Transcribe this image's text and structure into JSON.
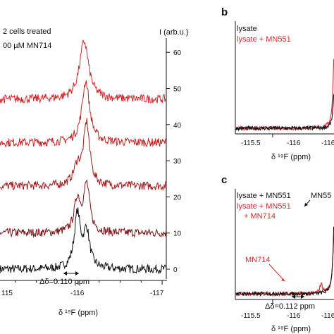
{
  "colors": {
    "black": "#111111",
    "red": "#d7262b",
    "series_shades": [
      "#111111",
      "#7a1414",
      "#a31c1c",
      "#c42424",
      "#d7262b"
    ]
  },
  "panel_a": {
    "condition_line1": "2 cells treated",
    "condition_line2": "00 µM MN714",
    "intensity_label": "I (arb.u.)",
    "x_axis_label": "δ ¹⁹F (ppm)",
    "delta_annotation": "Δδ=0.110 ppm",
    "x_tick_labels": [
      "115",
      "-116",
      "-117"
    ],
    "y_tick_labels": [
      "0",
      "10",
      "20",
      "30",
      "40",
      "50",
      "60"
    ]
  },
  "panel_b": {
    "letter": "b",
    "legend": [
      "lysate",
      "lysate + MN551"
    ],
    "x_axis_label": "δ ¹⁹F (ppm)",
    "x_tick_labels": [
      "-115.5",
      "-116",
      "-116"
    ]
  },
  "panel_c": {
    "letter": "c",
    "legend_line1": "lysate + MN551",
    "legend_line2": "lysate + MN551",
    "legend_line3": "+ MN714",
    "peak_label_top": "MN55",
    "peak_label_side": "MN714",
    "delta_annotation": "Δδ=0.112 ppm",
    "x_axis_label": "δ ¹⁹F (ppm)",
    "x_tick_labels": [
      "-115.5",
      "-116",
      "-116"
    ]
  },
  "chart_data": [
    {
      "type": "line",
      "title": "",
      "xlabel": "δ 19F (ppm)",
      "ylabel": "I (arb.u.)",
      "xlim": [
        -114.95,
        -117.05
      ],
      "ylim": [
        -5,
        65
      ],
      "grid": false,
      "series": [
        {
          "offset": 0,
          "peaks": [
            {
              "x": -115.99,
              "h": 15,
              "w": 0.02
            },
            {
              "x": -116.1,
              "h": 10,
              "w": 0.02
            }
          ]
        },
        {
          "offset": 10,
          "peaks": [
            {
              "x": -115.99,
              "h": 9,
              "w": 0.02
            },
            {
              "x": -116.1,
              "h": 13,
              "w": 0.02
            }
          ]
        },
        {
          "offset": 23,
          "peaks": [
            {
              "x": -115.99,
              "h": 5,
              "w": 0.025
            },
            {
              "x": -116.1,
              "h": 17,
              "w": 0.02
            }
          ]
        },
        {
          "offset": 35,
          "peaks": [
            {
              "x": -116.09,
              "h": 17,
              "w": 0.025
            }
          ]
        },
        {
          "offset": 47,
          "peaks": [
            {
              "x": -116.07,
              "h": 16,
              "w": 0.03
            }
          ]
        }
      ]
    },
    {
      "type": "line",
      "title": "",
      "xlabel": "δ 19F (ppm)",
      "xlim": [
        -115.2,
        -116.3
      ],
      "series": [
        {
          "name": "lysate",
          "peak_x": -116.0,
          "height": 0.45,
          "width": 0.012
        },
        {
          "name": "lysate + MN551",
          "peak_x": -116.0,
          "height": 0.97,
          "width": 0.012
        }
      ]
    },
    {
      "type": "line",
      "title": "",
      "xlabel": "δ 19F (ppm)",
      "xlim": [
        -115.2,
        -116.3
      ],
      "series": [
        {
          "name": "lysate + MN551",
          "peaks": [
            {
              "x": -116.0,
              "h": 0.97,
              "w": 0.012
            }
          ]
        },
        {
          "name": "lysate + MN551 + MN714",
          "peaks": [
            {
              "x": -116.0,
              "h": 0.78,
              "w": 0.014
            },
            {
              "x": -115.89,
              "h": 0.09,
              "w": 0.012
            }
          ]
        }
      ]
    }
  ]
}
